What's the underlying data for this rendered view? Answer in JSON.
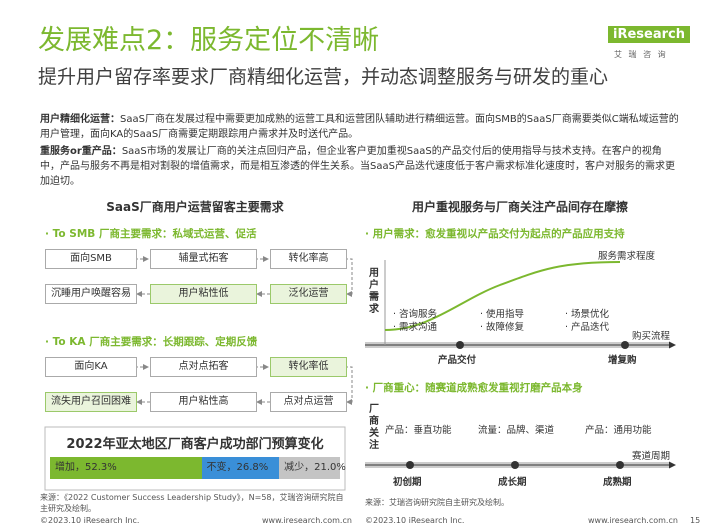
{
  "header": {
    "title": "发展难点2：服务定位不清晰",
    "subtitle": "提升用户留存率要求厂商精细化运营，并动态调整服务与研发的重心",
    "logo": "iResearch",
    "logo_sub": "艾 瑞 咨 询"
  },
  "paragraphs": [
    {
      "label": "用户精细化运营：",
      "text": "SaaS厂商在发展过程中需要更加成熟的运营工具和运营团队辅助进行精细运营。面向SMB的SaaS厂商需要类似C端私域运营的用户管理，面向KA的SaaS厂商需要定期跟踪用户需求并及时送代产品。"
    },
    {
      "label": "重服务or重产品：",
      "text": "SaaS市场的发展让厂商的关注点回归产品，但企业客户更加重视SaaS的产品交付后的使用指导与技术支持。在客户的视角中，产品与服务不再是相对割裂的增值需求，而是相互渗透的伴生关系。当SaaS产品迭代速度低于客户需求标准化速度时，客户对服务的需求更加迫切。"
    }
  ],
  "left_panel": {
    "title": "SaaS厂商用户运营留客主要需求",
    "smb": {
      "heading": "· To SMB 厂商主要需求：私域式运营、促活",
      "row1": [
        "面向SMB",
        "辅量式拓客",
        "转化率高"
      ],
      "row2": [
        "沉睡用户唤醒容易",
        "用户粘性低",
        "泛化运营"
      ]
    },
    "ka": {
      "heading": "· To KA 厂商主要需求：长期跟踪、定期反馈",
      "row1": [
        "面向KA",
        "点对点拓客",
        "转化率低"
      ],
      "row2": [
        "流失用户召回困难",
        "用户粘性高",
        "点对点运营"
      ]
    },
    "budget": {
      "title": "2022年亚太地区厂商客户成功部门预算变化",
      "segments": [
        {
          "name": "增加，",
          "value": 52.3,
          "value_label": "52.3%",
          "color": "#7cb82f"
        },
        {
          "name": "不变，",
          "value": 26.8,
          "value_label": "26.8%",
          "color": "#3a8fd8"
        },
        {
          "name": "减少，",
          "value": 21.0,
          "value_label": "21.0%",
          "color": "#c4c4c4"
        }
      ]
    },
    "source": "来源：《2022 Customer Success Leadership Study》，N=58，艾瑞咨询研究院自主研究及绘制。"
  },
  "right_panel": {
    "title": "用户重视服务与厂商关注产品间存在摩擦",
    "user": {
      "heading": "· 用户需求：愈发重视以产品交付为起点的产品应用支持",
      "axis_label": "用户需求",
      "curve_label": "服务需求程度",
      "items": [
        "· 咨询服务",
        "· 需求沟通",
        "· 使用指导",
        "· 故障修复",
        "· 场景优化",
        "· 产品迭代"
      ],
      "x_label": "购买流程",
      "points": [
        "产品交付",
        "增复购"
      ]
    },
    "vendor": {
      "heading": "· 厂商重心：随赛道成熟愈发重视打磨产品本身",
      "axis_label": "厂商关注",
      "items": [
        "产品：垂直功能",
        "流量：品牌、渠道",
        "产品：通用功能"
      ],
      "x_label": "赛道周期",
      "points": [
        "初创期",
        "成长期",
        "成熟期"
      ]
    },
    "source": "来源：艾瑞咨询研究院自主研究及绘制。"
  },
  "footer": {
    "copyright_left": "©2023.10 iResearch Inc.",
    "url_left": "www.iresearch.com.cn",
    "copyright_right": "©2023.10 iResearch Inc.",
    "url_right": "www.iresearch.com.cn",
    "page": "15"
  }
}
